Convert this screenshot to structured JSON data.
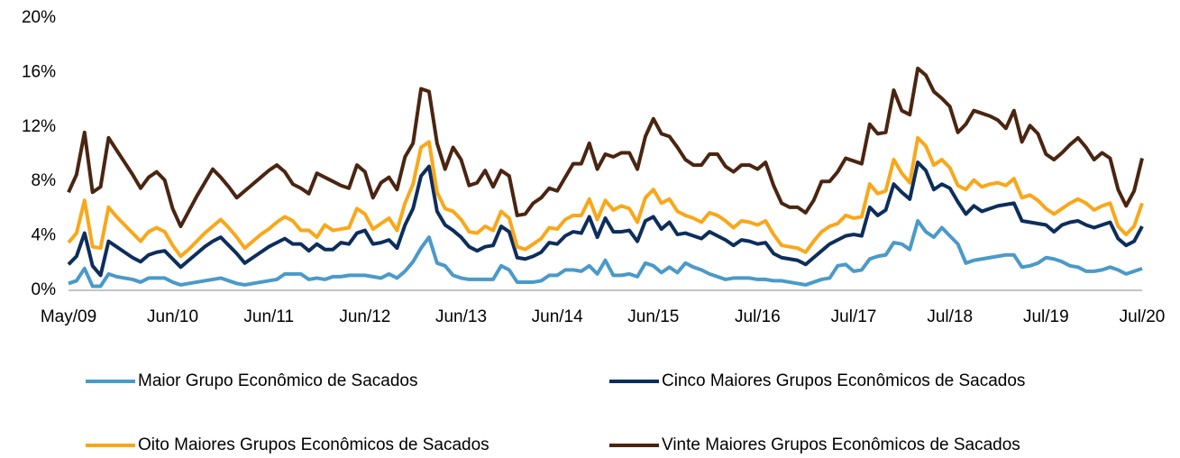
{
  "chart_data": {
    "type": "line",
    "categories": [
      "May/09",
      null,
      null,
      null,
      null,
      null,
      null,
      null,
      null,
      null,
      null,
      null,
      null,
      "Jun/10",
      null,
      null,
      null,
      null,
      null,
      null,
      null,
      null,
      null,
      null,
      null,
      "Jun/11",
      null,
      null,
      null,
      null,
      null,
      null,
      null,
      null,
      null,
      null,
      null,
      "Jun/12",
      null,
      null,
      null,
      null,
      null,
      null,
      null,
      null,
      null,
      null,
      null,
      "Jun/13",
      null,
      null,
      null,
      null,
      null,
      null,
      null,
      null,
      null,
      null,
      null,
      "Jun/14",
      null,
      null,
      null,
      null,
      null,
      null,
      null,
      null,
      null,
      null,
      null,
      "Jun/15",
      null,
      null,
      null,
      null,
      null,
      null,
      null,
      null,
      null,
      null,
      null,
      null,
      "Jul/16",
      null,
      null,
      null,
      null,
      null,
      null,
      null,
      null,
      null,
      null,
      null,
      "Jul/17",
      null,
      null,
      null,
      null,
      null,
      null,
      null,
      null,
      null,
      null,
      null,
      "Jul/18",
      null,
      null,
      null,
      null,
      null,
      null,
      null,
      null,
      null,
      null,
      null,
      "Jul/19",
      null,
      null,
      null,
      null,
      null,
      null,
      null,
      null,
      null,
      null,
      null,
      "Jul/20"
    ],
    "series": [
      {
        "name": "Maior Grupo Econômico de Sacados",
        "color": "#4a9ac9",
        "values": [
          0.5,
          0.7,
          1.6,
          0.3,
          0.3,
          1.2,
          1.0,
          0.9,
          0.8,
          0.6,
          0.9,
          0.9,
          0.9,
          0.6,
          0.4,
          0.5,
          0.6,
          0.7,
          0.8,
          0.9,
          0.7,
          0.5,
          0.4,
          0.5,
          0.6,
          0.7,
          0.8,
          1.2,
          1.2,
          1.2,
          0.8,
          0.9,
          0.8,
          1.0,
          1.0,
          1.1,
          1.1,
          1.1,
          1.0,
          0.9,
          1.2,
          0.9,
          1.4,
          2.1,
          3.1,
          3.9,
          2.0,
          1.8,
          1.1,
          0.9,
          0.8,
          0.8,
          0.8,
          0.8,
          1.8,
          1.5,
          0.6,
          0.6,
          0.6,
          0.7,
          1.1,
          1.1,
          1.5,
          1.5,
          1.4,
          1.8,
          1.2,
          2.2,
          1.1,
          1.1,
          1.2,
          1.0,
          2.0,
          1.8,
          1.3,
          1.7,
          1.3,
          2.0,
          1.7,
          1.5,
          1.2,
          1.0,
          0.8,
          0.9,
          0.9,
          0.9,
          0.8,
          0.8,
          0.7,
          0.7,
          0.6,
          0.5,
          0.4,
          0.6,
          0.8,
          0.9,
          1.8,
          1.9,
          1.4,
          1.5,
          2.3,
          2.5,
          2.6,
          3.5,
          3.4,
          3.0,
          5.1,
          4.3,
          3.9,
          4.6,
          4.0,
          3.4,
          2.0,
          2.2,
          2.3,
          2.4,
          2.5,
          2.6,
          2.6,
          1.7,
          1.8,
          2.0,
          2.4,
          2.3,
          2.1,
          1.8,
          1.7,
          1.4,
          1.4,
          1.5,
          1.7,
          1.5,
          1.2,
          1.4,
          1.6
        ]
      },
      {
        "name": "Cinco Maiores Grupos Econômicos de Sacados",
        "color": "#0d2e5c",
        "values": [
          1.9,
          2.5,
          4.2,
          1.8,
          1.1,
          3.6,
          3.2,
          2.8,
          2.4,
          2.1,
          2.6,
          2.8,
          2.9,
          2.3,
          1.7,
          2.2,
          2.7,
          3.2,
          3.6,
          3.9,
          3.3,
          2.7,
          2.0,
          2.4,
          2.8,
          3.2,
          3.5,
          3.8,
          3.4,
          3.4,
          2.9,
          3.4,
          3.0,
          3.0,
          3.5,
          3.4,
          4.2,
          4.4,
          3.4,
          3.5,
          3.7,
          3.1,
          4.8,
          6.0,
          8.4,
          9.1,
          5.8,
          4.8,
          4.4,
          3.9,
          3.2,
          2.9,
          3.2,
          3.3,
          4.7,
          4.3,
          2.4,
          2.3,
          2.5,
          2.8,
          3.5,
          3.4,
          4.0,
          4.3,
          4.2,
          5.4,
          3.9,
          5.3,
          4.3,
          4.3,
          4.4,
          3.6,
          5.1,
          5.4,
          4.5,
          5.0,
          4.1,
          4.2,
          4.0,
          3.8,
          4.3,
          4.0,
          3.7,
          3.3,
          3.7,
          3.6,
          3.4,
          3.5,
          2.7,
          2.4,
          2.3,
          2.2,
          1.9,
          2.4,
          2.9,
          3.4,
          3.7,
          4.0,
          4.1,
          4.0,
          6.1,
          5.5,
          5.9,
          7.8,
          7.2,
          6.7,
          9.4,
          8.8,
          7.4,
          7.8,
          7.5,
          6.5,
          5.6,
          6.2,
          5.8,
          6.0,
          6.2,
          6.3,
          6.4,
          5.1,
          5.0,
          4.9,
          4.8,
          4.3,
          4.8,
          5.0,
          5.1,
          4.8,
          4.6,
          4.8,
          5.0,
          3.8,
          3.3,
          3.6,
          4.7
        ]
      },
      {
        "name": "Oito Maiores Grupos Econômicos de Sacados",
        "color": "#f9a71a",
        "values": [
          3.5,
          4.2,
          6.6,
          3.2,
          3.1,
          6.1,
          5.4,
          4.8,
          4.2,
          3.6,
          4.3,
          4.6,
          4.3,
          3.3,
          2.5,
          3.0,
          3.6,
          4.2,
          4.7,
          5.2,
          4.6,
          3.9,
          3.1,
          3.6,
          4.1,
          4.5,
          5.0,
          5.4,
          5.1,
          4.4,
          4.4,
          3.9,
          4.8,
          4.4,
          4.5,
          4.6,
          6.0,
          5.6,
          4.5,
          4.9,
          5.3,
          4.4,
          6.4,
          7.8,
          10.5,
          10.9,
          7.2,
          6.0,
          5.8,
          5.2,
          4.3,
          4.2,
          4.7,
          4.4,
          5.8,
          5.3,
          3.2,
          3.0,
          3.4,
          3.8,
          4.6,
          4.5,
          5.2,
          5.5,
          5.5,
          6.7,
          5.2,
          6.6,
          5.9,
          6.2,
          6.0,
          5.0,
          6.8,
          7.4,
          6.4,
          6.7,
          5.8,
          5.5,
          5.3,
          5.0,
          5.7,
          5.5,
          5.1,
          4.6,
          5.1,
          5.0,
          4.8,
          5.1,
          4.1,
          3.3,
          3.2,
          3.1,
          2.8,
          3.6,
          4.3,
          4.7,
          4.9,
          5.5,
          5.3,
          5.4,
          7.8,
          7.1,
          7.3,
          9.6,
          8.6,
          7.9,
          11.2,
          10.6,
          9.2,
          9.6,
          9.0,
          7.7,
          7.4,
          8.1,
          7.6,
          7.8,
          7.9,
          7.7,
          8.2,
          6.8,
          7.0,
          6.6,
          6.0,
          5.6,
          6.0,
          6.4,
          6.7,
          6.4,
          5.9,
          6.2,
          6.4,
          4.7,
          4.1,
          4.7,
          6.4
        ]
      },
      {
        "name": "Vinte Maiores Grupos Econômicos de Sacados",
        "color": "#4a2511",
        "values": [
          7.2,
          8.5,
          11.6,
          7.2,
          7.6,
          11.2,
          10.3,
          9.4,
          8.5,
          7.5,
          8.3,
          8.7,
          8.1,
          6.0,
          4.7,
          5.8,
          6.9,
          7.9,
          8.9,
          8.3,
          7.6,
          6.8,
          7.3,
          7.8,
          8.3,
          8.8,
          9.2,
          8.7,
          7.8,
          7.5,
          7.1,
          8.6,
          8.3,
          8.0,
          7.7,
          7.5,
          9.2,
          8.7,
          6.8,
          7.9,
          8.3,
          7.4,
          9.8,
          10.8,
          14.8,
          14.6,
          10.8,
          8.9,
          10.5,
          9.6,
          7.7,
          7.9,
          8.8,
          7.6,
          8.8,
          8.4,
          5.5,
          5.6,
          6.4,
          6.8,
          7.5,
          7.3,
          8.3,
          9.3,
          9.3,
          10.8,
          8.9,
          10.0,
          9.8,
          10.1,
          10.1,
          8.9,
          11.3,
          12.6,
          11.5,
          11.3,
          10.5,
          9.6,
          9.2,
          9.2,
          10.0,
          10.0,
          9.1,
          8.7,
          9.2,
          9.2,
          8.9,
          9.4,
          7.7,
          6.4,
          6.1,
          6.1,
          5.7,
          6.6,
          8.0,
          8.0,
          8.7,
          9.7,
          9.5,
          9.3,
          12.2,
          11.5,
          11.6,
          14.7,
          13.2,
          12.9,
          16.3,
          15.8,
          14.6,
          14.1,
          13.5,
          11.6,
          12.2,
          13.2,
          13.0,
          12.8,
          12.5,
          11.9,
          13.2,
          10.9,
          12.1,
          11.5,
          10.0,
          9.6,
          10.1,
          10.7,
          11.2,
          10.5,
          9.6,
          10.1,
          9.7,
          7.4,
          6.2,
          7.3,
          9.7
        ]
      }
    ],
    "ylim": [
      0,
      20
    ],
    "yticks": [
      {
        "value": 0,
        "label": "0%"
      },
      {
        "value": 4,
        "label": "4%"
      },
      {
        "value": 8,
        "label": "8%"
      },
      {
        "value": 12,
        "label": "12%"
      },
      {
        "value": 16,
        "label": "16%"
      },
      {
        "value": 20,
        "label": "20%"
      }
    ],
    "grid": false,
    "legend": "bottom"
  }
}
